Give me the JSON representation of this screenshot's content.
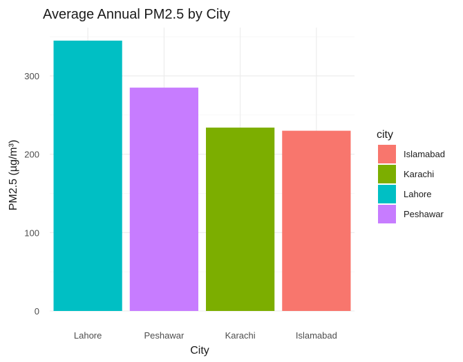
{
  "chart_data": {
    "type": "bar",
    "title": "Average Annual PM2.5 by City",
    "xlabel": "City",
    "ylabel": "PM2.5 (µg/m³)",
    "categories": [
      "Lahore",
      "Peshawar",
      "Karachi",
      "Islamabad"
    ],
    "values": [
      345,
      285,
      234,
      230
    ],
    "ylim": [
      0,
      360
    ],
    "yticks": [
      0,
      100,
      200,
      300
    ],
    "grid": true,
    "legend": {
      "title": "city",
      "position": "right",
      "entries": [
        {
          "label": "Islamabad",
          "color": "#F8766D"
        },
        {
          "label": "Karachi",
          "color": "#7CAE00"
        },
        {
          "label": "Lahore",
          "color": "#00BFC4"
        },
        {
          "label": "Peshawar",
          "color": "#C77CFF"
        }
      ]
    },
    "colors": {
      "Islamabad": "#F8766D",
      "Karachi": "#7CAE00",
      "Lahore": "#00BFC4",
      "Peshawar": "#C77CFF"
    }
  }
}
